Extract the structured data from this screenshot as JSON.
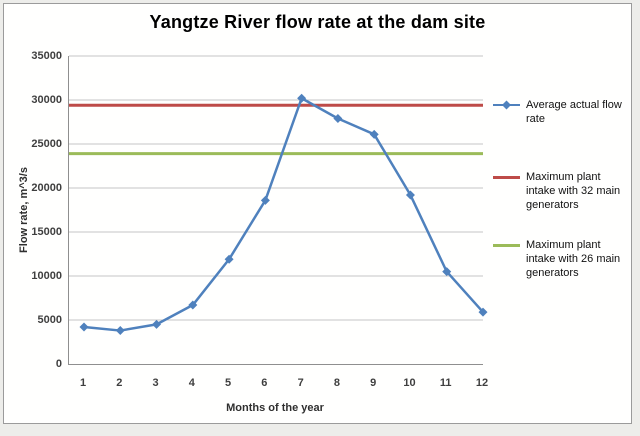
{
  "chart_data": {
    "type": "line",
    "title": "Yangtze River flow rate at the dam site",
    "xlabel": "Months of the year",
    "ylabel": "Flow rate, m^3/s",
    "x": [
      1,
      2,
      3,
      4,
      5,
      6,
      7,
      8,
      9,
      10,
      11,
      12
    ],
    "series": [
      {
        "name": "Average actual flow rate",
        "color": "#4F81BD",
        "marker": "diamond",
        "values": [
          4200,
          3800,
          4500,
          6700,
          11900,
          18600,
          30200,
          27900,
          26100,
          19200,
          10500,
          5900
        ]
      }
    ],
    "ref_lines": [
      {
        "name": "Maximum plant intake with 32 main generators",
        "value": 29400,
        "color": "#BE4B48"
      },
      {
        "name": "Maximum plant intake with 26 main generators",
        "value": 23900,
        "color": "#9BBB59"
      }
    ],
    "ylim": [
      0,
      35000
    ],
    "ytick_step": 5000,
    "yticks": [
      0,
      5000,
      10000,
      15000,
      20000,
      25000,
      30000,
      35000
    ],
    "grid": true,
    "legend_position": "right",
    "colors": {
      "gridline": "#c6c6c6",
      "axis": "#8f8f8f",
      "tick_text": "#3f3f3f"
    }
  }
}
